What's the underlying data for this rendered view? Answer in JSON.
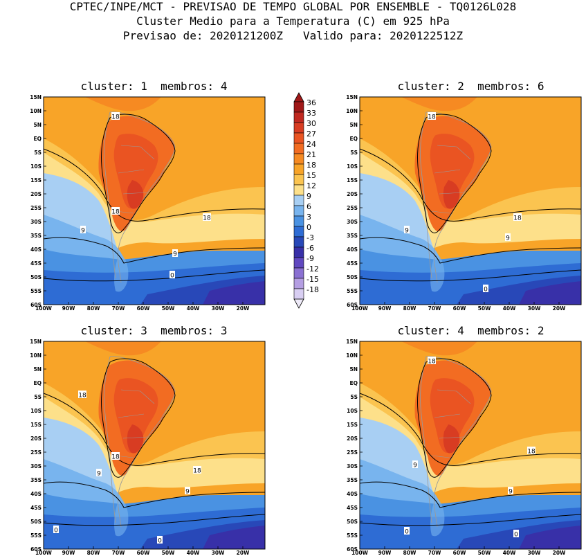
{
  "header": {
    "line1": "CPTEC/INPE/MCT - PREVISAO DE TEMPO GLOBAL POR ENSEMBLE - TQ0126L028",
    "line2": "Cluster Medio para a Temperatura (C) em 925 hPa",
    "line3": "Previsao de: 2020121200Z   Valido para: 2020122512Z"
  },
  "panels": [
    {
      "title": "cluster: 1  membros: 4"
    },
    {
      "title": "cluster: 2  membros: 6"
    },
    {
      "title": "cluster: 3  membros: 3"
    },
    {
      "title": "cluster: 4  membros: 2"
    }
  ],
  "axes": {
    "lat_labels": [
      "15N",
      "10N",
      "5N",
      "EQ",
      "5S",
      "10S",
      "15S",
      "20S",
      "25S",
      "30S",
      "35S",
      "40S",
      "45S",
      "50S",
      "55S",
      "60S"
    ],
    "lon_labels": [
      "100W",
      "90W",
      "80W",
      "70W",
      "60W",
      "50W",
      "40W",
      "30W",
      "20W"
    ]
  },
  "colorbar": {
    "labels": [
      "36",
      "33",
      "30",
      "27",
      "24",
      "21",
      "18",
      "15",
      "12",
      "9",
      "6",
      "3",
      "0",
      "-3",
      "-6",
      "-9",
      "-12",
      "-15",
      "-18"
    ],
    "colors": [
      "#a01818",
      "#c02820",
      "#d83c22",
      "#ea5422",
      "#f26c22",
      "#f68a22",
      "#f8a428",
      "#fbc450",
      "#fde08a",
      "#a8cff3",
      "#78b4ee",
      "#4a92e2",
      "#2e6cd4",
      "#2848b8",
      "#3830a8",
      "#6048c0",
      "#8a70d2",
      "#b49ee2",
      "#d8cef2"
    ]
  },
  "contour_labels": {
    "p1": [
      "18",
      "18",
      "18",
      "9",
      "9",
      "0"
    ],
    "p2": [
      "18",
      "18",
      "9",
      "9",
      "0"
    ],
    "p3": [
      "18",
      "18",
      "18",
      "9",
      "9",
      "0",
      "0"
    ],
    "p4": [
      "18",
      "18",
      "9",
      "9",
      "0",
      "0"
    ]
  }
}
